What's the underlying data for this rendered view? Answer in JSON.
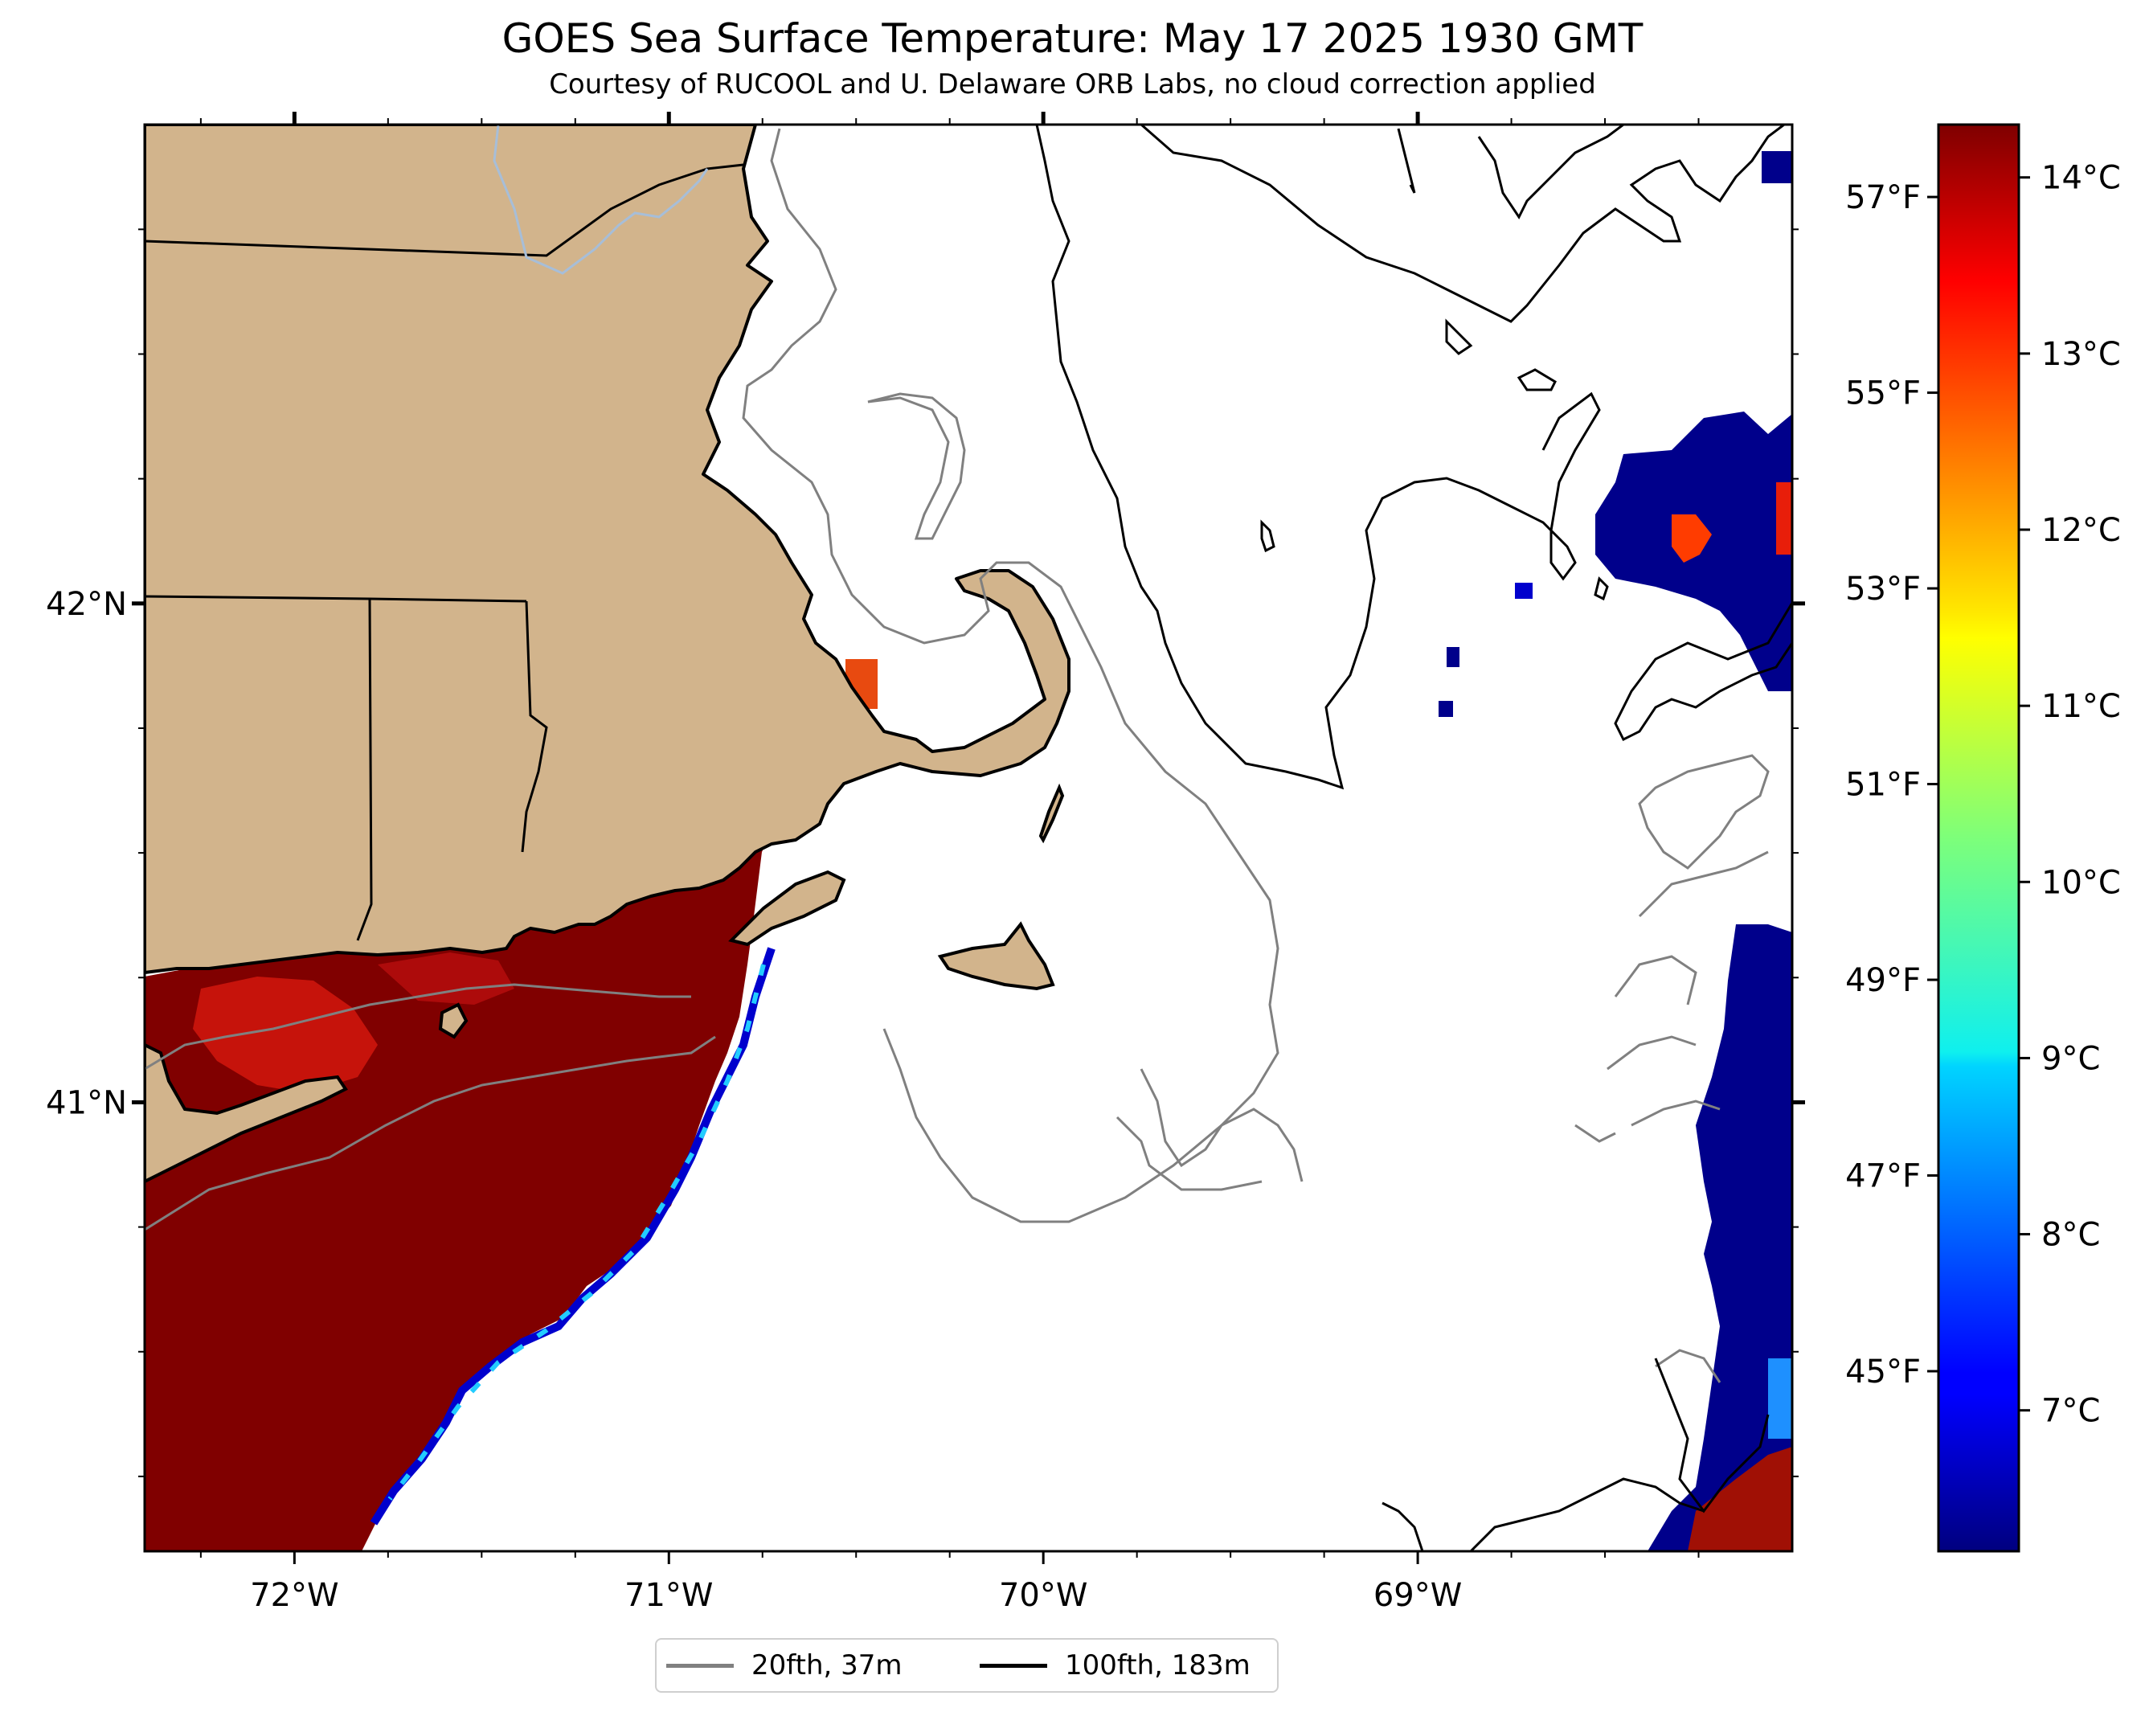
{
  "header": {
    "title": "GOES Sea Surface Temperature: May 17 2025 1930 GMT",
    "subtitle": "Courtesy of RUCOOL and U. Delaware ORB Labs, no cloud correction applied"
  },
  "map": {
    "x_axis": {
      "range": [
        -72.4,
        -68.0
      ],
      "ticks": [
        {
          "value": -72,
          "label": "72°W"
        },
        {
          "value": -71,
          "label": "71°W"
        },
        {
          "value": -70,
          "label": "70°W"
        },
        {
          "value": -69,
          "label": "69°W"
        }
      ]
    },
    "y_axis": {
      "range": [
        40.1,
        42.96
      ],
      "ticks": [
        {
          "value": 42,
          "label": "42°N"
        },
        {
          "value": 41,
          "label": "41°N"
        }
      ]
    },
    "colors": {
      "land": "#d2b48c",
      "warm_water": "#800000",
      "cold_water": "#00008b",
      "contour_20fth": "#808080",
      "contour_100fth": "#000000",
      "river": "#a7bed8"
    }
  },
  "colorbar": {
    "celsius_ticks": [
      {
        "value": 14,
        "label": "14°C"
      },
      {
        "value": 13,
        "label": "13°C"
      },
      {
        "value": 12,
        "label": "12°C"
      },
      {
        "value": 11,
        "label": "11°C"
      },
      {
        "value": 10,
        "label": "10°C"
      },
      {
        "value": 9,
        "label": "9°C"
      },
      {
        "value": 8,
        "label": "8°C"
      },
      {
        "value": 7,
        "label": "7°C"
      }
    ],
    "fahrenheit_ticks": [
      {
        "value": 57,
        "label": "57°F"
      },
      {
        "value": 55,
        "label": "55°F"
      },
      {
        "value": 53,
        "label": "53°F"
      },
      {
        "value": 51,
        "label": "51°F"
      },
      {
        "value": 49,
        "label": "49°F"
      },
      {
        "value": 47,
        "label": "47°F"
      },
      {
        "value": 45,
        "label": "45°F"
      }
    ],
    "colormap": "jet"
  },
  "legend": {
    "items": [
      {
        "label": "20fth, 37m",
        "color": "#808080"
      },
      {
        "label": "100fth, 183m",
        "color": "#000000"
      }
    ]
  }
}
